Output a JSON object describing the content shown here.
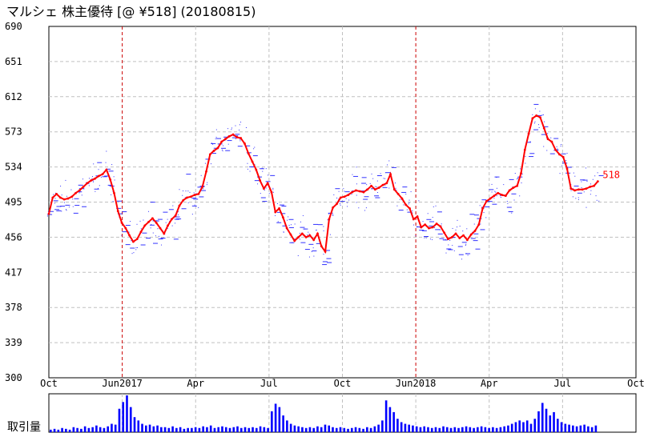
{
  "chart_data": {
    "type": "line",
    "title": "マルシェ 株主優待  [@ ¥518] (20180815)",
    "ylim": [
      300,
      690
    ],
    "yticks": [
      "690",
      "651",
      "612",
      "573",
      "534",
      "495",
      "456",
      "417",
      "378",
      "339",
      "300"
    ],
    "xticks": [
      "Oct",
      "Jun2017",
      "Apr",
      "Jul",
      "Oct",
      "Jun2018",
      "Apr",
      "Jul",
      "Oct"
    ],
    "volume_label": "取引量",
    "last_label": "518",
    "grid": true,
    "marker_lines": [
      "Jun2017",
      "Jun2018"
    ],
    "series": [
      {
        "values": [
          482,
          500,
          504,
          500,
          498,
          499,
          501,
          505,
          508,
          512,
          516,
          519,
          521,
          524,
          526,
          531,
          520,
          505,
          485,
          472,
          466,
          458,
          451,
          454,
          462,
          469,
          473,
          477,
          472,
          466,
          460,
          469,
          476,
          480,
          491,
          497,
          500,
          501,
          503,
          504,
          512,
          529,
          548,
          552,
          555,
          562,
          565,
          568,
          570,
          567,
          566,
          560,
          549,
          540,
          531,
          519,
          510,
          516,
          506,
          484,
          488,
          478,
          466,
          459,
          452,
          456,
          460,
          456,
          458,
          453,
          460,
          446,
          440,
          476,
          489,
          493,
          500,
          501,
          503,
          506,
          508,
          507,
          506,
          509,
          513,
          509,
          511,
          514,
          516,
          526,
          509,
          504,
          499,
          492,
          488,
          476,
          479,
          467,
          470,
          466,
          467,
          471,
          468,
          461,
          454,
          456,
          460,
          455,
          458,
          453,
          459,
          463,
          470,
          488,
          496,
          499,
          502,
          505,
          503,
          502,
          508,
          511,
          513,
          527,
          553,
          571,
          588,
          591,
          589,
          577,
          565,
          562,
          553,
          548,
          545,
          532,
          510,
          508,
          509,
          509,
          510,
          512,
          513,
          518
        ],
        "color": "#ff0000"
      }
    ],
    "volume": [
      3,
      4,
      3,
      5,
      4,
      3,
      6,
      5,
      4,
      7,
      5,
      6,
      8,
      6,
      5,
      7,
      10,
      9,
      28,
      36,
      44,
      30,
      18,
      14,
      10,
      8,
      9,
      7,
      8,
      6,
      6,
      5,
      7,
      5,
      6,
      4,
      5,
      5,
      6,
      5,
      7,
      6,
      8,
      5,
      6,
      7,
      6,
      5,
      6,
      7,
      5,
      6,
      5,
      6,
      5,
      7,
      6,
      5,
      25,
      34,
      30,
      20,
      14,
      10,
      8,
      7,
      6,
      5,
      6,
      5,
      7,
      6,
      9,
      8,
      6,
      5,
      6,
      5,
      4,
      5,
      6,
      5,
      4,
      6,
      5,
      7,
      9,
      14,
      38,
      30,
      24,
      16,
      12,
      10,
      9,
      8,
      7,
      6,
      7,
      6,
      5,
      6,
      5,
      7,
      6,
      5,
      6,
      5,
      6,
      7,
      6,
      5,
      6,
      7,
      6,
      5,
      6,
      5,
      6,
      7,
      8,
      10,
      12,
      14,
      12,
      14,
      10,
      16,
      25,
      35,
      28,
      20,
      24,
      16,
      12,
      10,
      9,
      8,
      7,
      8,
      9,
      7,
      6,
      8
    ],
    "volume_color": "#0000ff",
    "scatter_color": "#0000ff"
  }
}
